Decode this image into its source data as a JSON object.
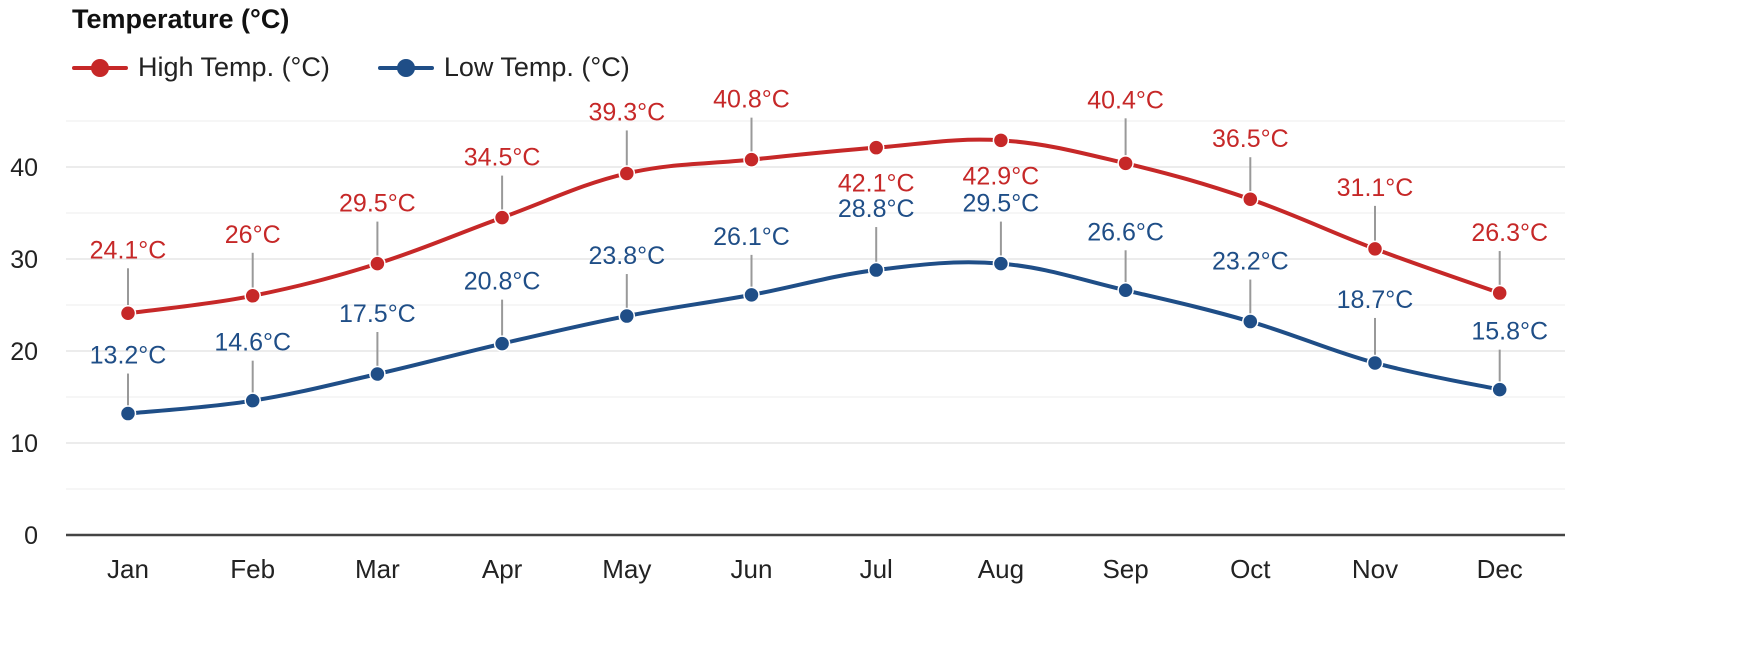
{
  "chart_data": {
    "type": "line",
    "title": "Temperature (°C)",
    "categories": [
      "Jan",
      "Feb",
      "Mar",
      "Apr",
      "May",
      "Jun",
      "Jul",
      "Aug",
      "Sep",
      "Oct",
      "Nov",
      "Dec"
    ],
    "series": [
      {
        "name": "High Temp. (°C)",
        "color": "#c62828",
        "values": [
          24.1,
          26,
          29.5,
          34.5,
          39.3,
          40.8,
          42.1,
          42.9,
          40.4,
          36.5,
          31.1,
          26.3
        ],
        "labels": [
          "24.1°C",
          "26°C",
          "29.5°C",
          "34.5°C",
          "39.3°C",
          "40.8°C",
          "42.1°C",
          "42.9°C",
          "40.4°C",
          "36.5°C",
          "31.1°C",
          "26.3°C"
        ]
      },
      {
        "name": "Low Temp. (°C)",
        "color": "#1f4e87",
        "values": [
          13.2,
          14.6,
          17.5,
          20.8,
          23.8,
          26.1,
          28.8,
          29.5,
          26.6,
          23.2,
          18.7,
          15.8
        ],
        "labels": [
          "13.2°C",
          "14.6°C",
          "17.5°C",
          "20.8°C",
          "23.8°C",
          "26.1°C",
          "28.8°C",
          "29.5°C",
          "26.6°C",
          "23.2°C",
          "18.7°C",
          "15.8°C"
        ]
      }
    ],
    "yticks": [
      "0",
      "10",
      "20",
      "30",
      "40"
    ],
    "ylim": [
      0,
      45
    ],
    "xlabel": "",
    "ylabel": "",
    "grid": true,
    "legend_position": "top-left"
  }
}
